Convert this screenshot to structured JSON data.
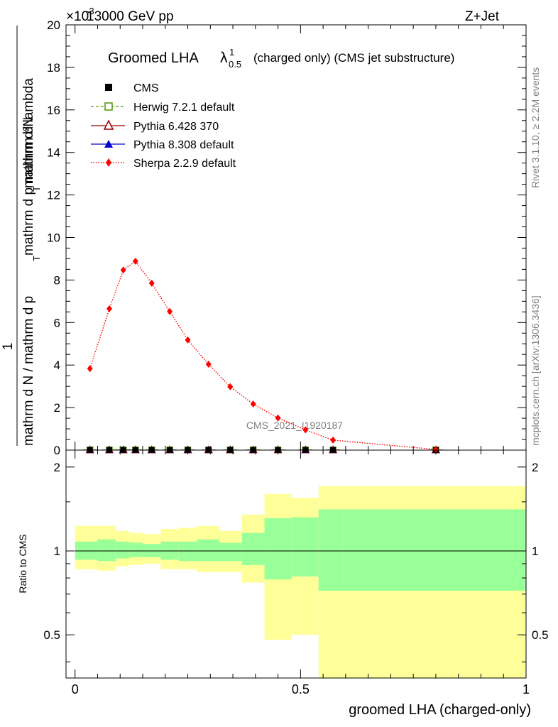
{
  "header": {
    "energy": "13000 GeV pp",
    "process": "Z+Jet",
    "exponent_prefix": "×10",
    "exponent_value": "-3"
  },
  "side_labels": {
    "rivet": "Rivet 3.1.10, ≥ 2.2M events",
    "mcplots": "mcplots.cern.ch [arXiv:1306.3436]"
  },
  "colors": {
    "cms": "#000000",
    "herwig": "#4c9900",
    "pythia6": "#990000",
    "pythia8": "#0000cc",
    "sherpa": "#ff0000",
    "band_inner": "#99ff99",
    "band_outer": "#ffff99"
  },
  "chart_data": [
    {
      "type": "line",
      "title": {
        "prefix": "Groomed LHA ",
        "lambda": "λ",
        "sup": "1",
        "sub": "0.5",
        "suffix": "(charged only) (CMS jet substructure)"
      },
      "ylabel": {
        "numerator": "mathrm d²N",
        "denominator_1": "mathrm d N / mathrm d p",
        "denominator_2": "T",
        "denominator_3": "mathrm d p",
        "denominator_4": "T",
        "denominator_5": "mathrm d lambda",
        "one": "1",
        "den_full": "mathrm d N / mathrm d p",
        "num_full_a": "mathrm d p",
        "num_full_b": "T",
        "num_full_c": "mathrm d lambda"
      },
      "watermark": "CMS_2021_I1920187",
      "ylim": [
        0,
        20
      ],
      "xlim": [
        -0.02,
        1.0
      ],
      "yticks": [
        "0",
        "2",
        "4",
        "6",
        "8",
        "10",
        "12",
        "14",
        "16",
        "18",
        "20"
      ],
      "legend_position": "top-left",
      "legend": [
        "CMS",
        "Herwig 7.2.1 default",
        "Pythia 6.428 370",
        "Pythia 8.308 default",
        "Sherpa 2.2.9 default"
      ],
      "x": [
        0.033,
        0.076,
        0.107,
        0.134,
        0.17,
        0.21,
        0.25,
        0.296,
        0.344,
        0.395,
        0.45,
        0.511,
        0.572,
        0.8
      ],
      "series": [
        {
          "name": "CMS",
          "values": [
            0.01,
            0.01,
            0.01,
            0.01,
            0.01,
            0.01,
            0.01,
            0.01,
            0.01,
            0.01,
            0.01,
            0.01,
            0.01,
            0.01
          ]
        },
        {
          "name": "Herwig 7.2.1 default",
          "values": [
            0.01,
            0.01,
            0.01,
            0.01,
            0.01,
            0.01,
            0.01,
            0.01,
            0.01,
            0.01,
            0.01,
            0.01,
            0.01,
            0.01
          ]
        },
        {
          "name": "Pythia 6.428 370",
          "values": [
            0.01,
            0.01,
            0.01,
            0.01,
            0.01,
            0.01,
            0.01,
            0.01,
            0.01,
            0.01,
            0.01,
            0.01,
            0.01,
            0.01
          ]
        },
        {
          "name": "Pythia 8.308 default",
          "values": [
            0.01,
            0.01,
            0.01,
            0.01,
            0.01,
            0.01,
            0.01,
            0.01,
            0.01,
            0.01,
            0.01,
            0.01,
            0.01,
            0.01
          ]
        },
        {
          "name": "Sherpa 2.2.9 default",
          "values": [
            3.83,
            6.65,
            8.47,
            8.88,
            7.85,
            6.52,
            5.18,
            4.04,
            2.98,
            2.17,
            1.51,
            0.95,
            0.47,
            0.03
          ]
        }
      ]
    },
    {
      "type": "area",
      "ylabel": "Ratio to CMS",
      "xlabel": "groomed LHA (charged-only)",
      "ylim": [
        0.35,
        2.3
      ],
      "xlim": [
        -0.02,
        1.0
      ],
      "yticks": [
        "0.5",
        "1",
        "2"
      ],
      "xticks": [
        "0",
        "0.5",
        "1"
      ],
      "bins": [
        {
          "lo": 0.0,
          "hi": 0.05,
          "inner": [
            0.93,
            1.08
          ],
          "outer": [
            0.86,
            1.23
          ]
        },
        {
          "lo": 0.05,
          "hi": 0.09,
          "inner": [
            0.92,
            1.1
          ],
          "outer": [
            0.85,
            1.23
          ]
        },
        {
          "lo": 0.09,
          "hi": 0.12,
          "inner": [
            0.94,
            1.08
          ],
          "outer": [
            0.88,
            1.18
          ]
        },
        {
          "lo": 0.12,
          "hi": 0.15,
          "inner": [
            0.95,
            1.07
          ],
          "outer": [
            0.89,
            1.16
          ]
        },
        {
          "lo": 0.15,
          "hi": 0.19,
          "inner": [
            0.95,
            1.06
          ],
          "outer": [
            0.9,
            1.15
          ]
        },
        {
          "lo": 0.19,
          "hi": 0.23,
          "inner": [
            0.93,
            1.08
          ],
          "outer": [
            0.86,
            1.2
          ]
        },
        {
          "lo": 0.23,
          "hi": 0.27,
          "inner": [
            0.92,
            1.08
          ],
          "outer": [
            0.86,
            1.21
          ]
        },
        {
          "lo": 0.27,
          "hi": 0.32,
          "inner": [
            0.92,
            1.1
          ],
          "outer": [
            0.84,
            1.23
          ]
        },
        {
          "lo": 0.32,
          "hi": 0.37,
          "inner": [
            0.92,
            1.07
          ],
          "outer": [
            0.84,
            1.18
          ]
        },
        {
          "lo": 0.37,
          "hi": 0.42,
          "inner": [
            0.89,
            1.16
          ],
          "outer": [
            0.77,
            1.35
          ]
        },
        {
          "lo": 0.42,
          "hi": 0.48,
          "inner": [
            0.79,
            1.31
          ],
          "outer": [
            0.48,
            1.6
          ]
        },
        {
          "lo": 0.48,
          "hi": 0.54,
          "inner": [
            0.81,
            1.32
          ],
          "outer": [
            0.5,
            1.55
          ]
        },
        {
          "lo": 0.54,
          "hi": 0.595,
          "inner": [
            0.72,
            1.41
          ],
          "outer": [
            0.35,
            1.71
          ]
        },
        {
          "lo": 0.595,
          "hi": 1.0,
          "inner": [
            0.72,
            1.41
          ],
          "outer": [
            0.35,
            1.71
          ]
        }
      ],
      "series": [
        {
          "name": "Sherpa 2.2.9 default",
          "values": [
            1,
            1,
            1,
            1,
            1,
            1,
            1,
            1,
            1,
            1,
            1,
            1,
            1,
            1
          ]
        }
      ]
    }
  ]
}
